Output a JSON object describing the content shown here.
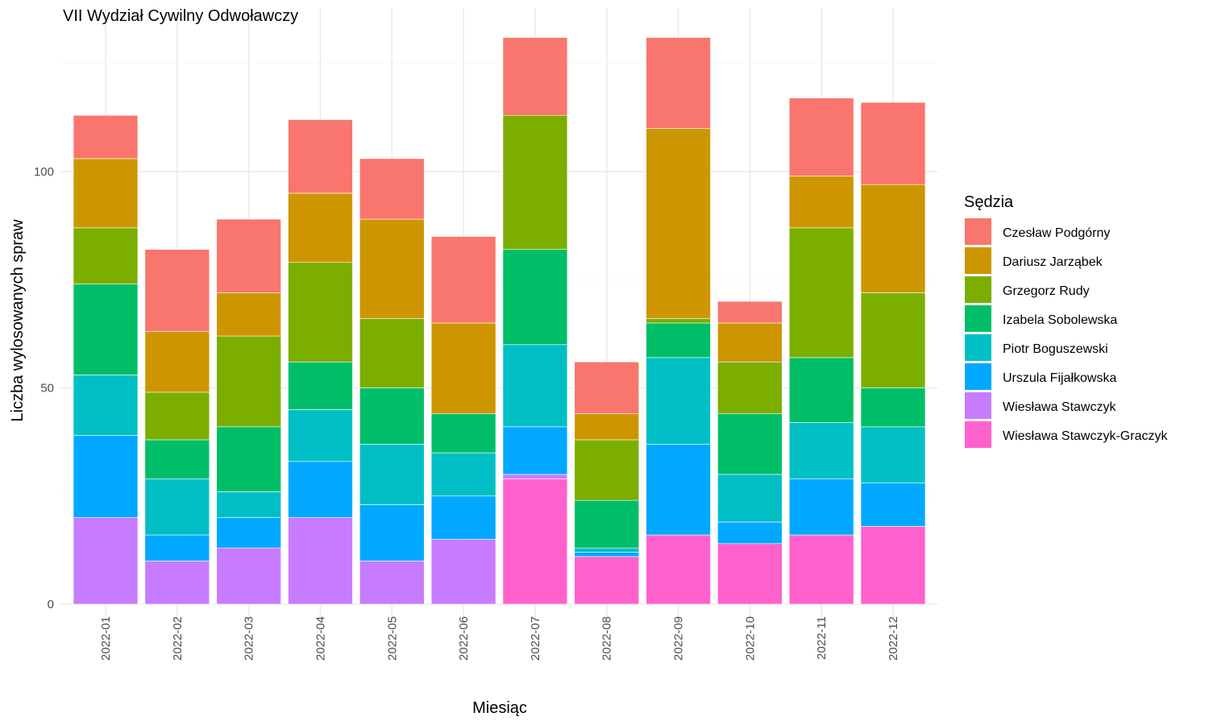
{
  "chart_data": {
    "type": "bar",
    "stacked": true,
    "title": "VII Wydział Cywilny Odwoławczy",
    "xlabel": "Miesiąc",
    "ylabel": "Liczba wylosowanych spraw",
    "ylim": [
      0,
      137
    ],
    "yticks": [
      0,
      50,
      100
    ],
    "grid": true,
    "legend": {
      "title": "Sędzia",
      "position": "right"
    },
    "categories": [
      "2022-01",
      "2022-02",
      "2022-03",
      "2022-04",
      "2022-05",
      "2022-06",
      "2022-07",
      "2022-08",
      "2022-09",
      "2022-10",
      "2022-11",
      "2022-12"
    ],
    "series": [
      {
        "name": "Czesław Podgórny",
        "color": "#F8766D",
        "values": [
          10,
          19,
          17,
          17,
          14,
          20,
          18,
          12,
          21,
          5,
          18,
          19
        ]
      },
      {
        "name": "Dariusz Jarząbek",
        "color": "#CD9600",
        "values": [
          16,
          14,
          10,
          16,
          23,
          21,
          0,
          6,
          44,
          9,
          12,
          25
        ]
      },
      {
        "name": "Grzegorz Rudy",
        "color": "#7CAE00",
        "values": [
          13,
          11,
          21,
          23,
          16,
          0,
          31,
          14,
          1,
          12,
          30,
          22
        ]
      },
      {
        "name": "Izabela Sobolewska",
        "color": "#00BE67",
        "values": [
          21,
          9,
          15,
          11,
          13,
          9,
          22,
          11,
          8,
          14,
          15,
          9
        ]
      },
      {
        "name": "Piotr Boguszewski",
        "color": "#00BFC4",
        "values": [
          14,
          13,
          6,
          12,
          14,
          10,
          19,
          1,
          20,
          11,
          13,
          13
        ]
      },
      {
        "name": "Urszula Fijałkowska",
        "color": "#00A9FF",
        "values": [
          19,
          6,
          7,
          13,
          13,
          10,
          11,
          1,
          21,
          5,
          13,
          10
        ]
      },
      {
        "name": "Wiesława Stawczyk",
        "color": "#C77CFF",
        "values": [
          20,
          10,
          13,
          20,
          10,
          15,
          1,
          0,
          0,
          0,
          0,
          0
        ]
      },
      {
        "name": "Wiesława Stawczyk-Graczyk",
        "color": "#FF61CC",
        "values": [
          0,
          0,
          0,
          0,
          0,
          0,
          29,
          11,
          16,
          14,
          16,
          18
        ]
      }
    ]
  }
}
